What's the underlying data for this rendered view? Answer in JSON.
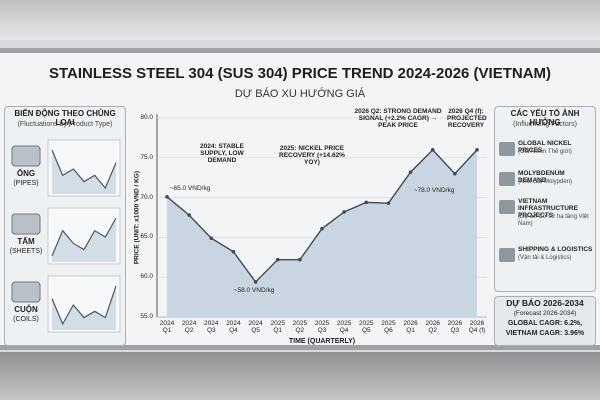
{
  "title": "STAINLESS STEEL 304 (SUS 304) PRICE TREND 2024-2026 (VIETNAM)",
  "subtitle": "DỰ BÁO XU HƯỚNG GIÁ",
  "left_panel": {
    "title": "BIẾN ĐỘNG THEO CHỦNG LOẠI",
    "subtitle": "(Fluctuations by Product Type)",
    "items": [
      {
        "name": "ỐNG",
        "name_en": "(PIPES)",
        "trend": [
          6,
          4,
          4.5,
          3.5,
          4,
          3,
          5
        ]
      },
      {
        "name": "TẤM",
        "name_en": "(SHEETS)",
        "trend": [
          3,
          5,
          4,
          3.5,
          5,
          4.5,
          6
        ]
      },
      {
        "name": "CUỘN",
        "name_en": "(COILS)",
        "trend": [
          5,
          3,
          4.5,
          3.5,
          4,
          3.5,
          6
        ]
      }
    ]
  },
  "right_panel": {
    "title": "CÁC YẾU TỐ ẢNH HƯỞNG",
    "subtitle": "(Influencing Factors)",
    "items": [
      {
        "name": "GLOBAL NICKEL PRICES",
        "note": "(Giá Niken Thế giới)"
      },
      {
        "name": "MOLYBDENUM DEMAND",
        "note": "(Nhu cầu Molypden)"
      },
      {
        "name": "VIETNAM INFRASTRUCTURE PROJECTS",
        "note": "(Dự án Cơ sở hạ tầng Việt Nam)"
      },
      {
        "name": "SHIPPING & LOGISTICS",
        "note": "(Vận tải & Logistics)"
      }
    ],
    "forecast": {
      "title": "DỰ BÁO 2026-2034",
      "subtitle": "(Forecast 2026-2034)",
      "lines": [
        "GLOBAL CAGR: 6.2%,",
        "VIETNAM CAGR: 3.96%"
      ]
    }
  },
  "chart_data": {
    "type": "area",
    "x_label": "TIME (QUARTERLY)",
    "y_label": "PRICE (UNIT: x1000 VND / KG)",
    "categories": [
      "2024 Q1",
      "2024 Q2",
      "2024 Q3",
      "2024 Q4",
      "2024 Q5",
      "2025 Q1",
      "2025 Q2",
      "2025 Q3",
      "2025 Q4",
      "2025 Q5",
      "2025 Q6",
      "2026 Q1",
      "2026 Q2",
      "2026 Q3",
      "2026 Q4 (f)"
    ],
    "values": [
      70.1,
      67.8,
      64.9,
      63.2,
      59.4,
      62.2,
      62.2,
      66.1,
      68.2,
      69.4,
      69.3,
      73.2,
      76.0,
      73.0,
      76.0
    ],
    "color": "#3c4a5c",
    "fill": "#c9d6e2",
    "ylim": [
      55,
      80
    ],
    "yticks": [
      {
        "value": 55,
        "label": "55.0"
      },
      {
        "value": 60,
        "label": "60.0"
      },
      {
        "value": 65,
        "label": "65.0"
      },
      {
        "value": 70,
        "label": "70.0"
      },
      {
        "value": 75,
        "label": "75.0"
      },
      {
        "value": 80,
        "label": "80.0"
      }
    ],
    "grid": true,
    "annotations": [
      "2024: STABLE SUPPLY, LOW DEMAND",
      "2025: NICKEL PRICE RECOVERY (+14.62% YOY)",
      "2026 Q2: STRONG DEMAND SIGNAL (+2.2% CAGR) → PEAK PRICE",
      "2026 Q4 (f): PROJECTED RECOVERY",
      "~65.0 VND/kg",
      "~58.0 VND/kg",
      "~78.0 VND/kg"
    ]
  }
}
